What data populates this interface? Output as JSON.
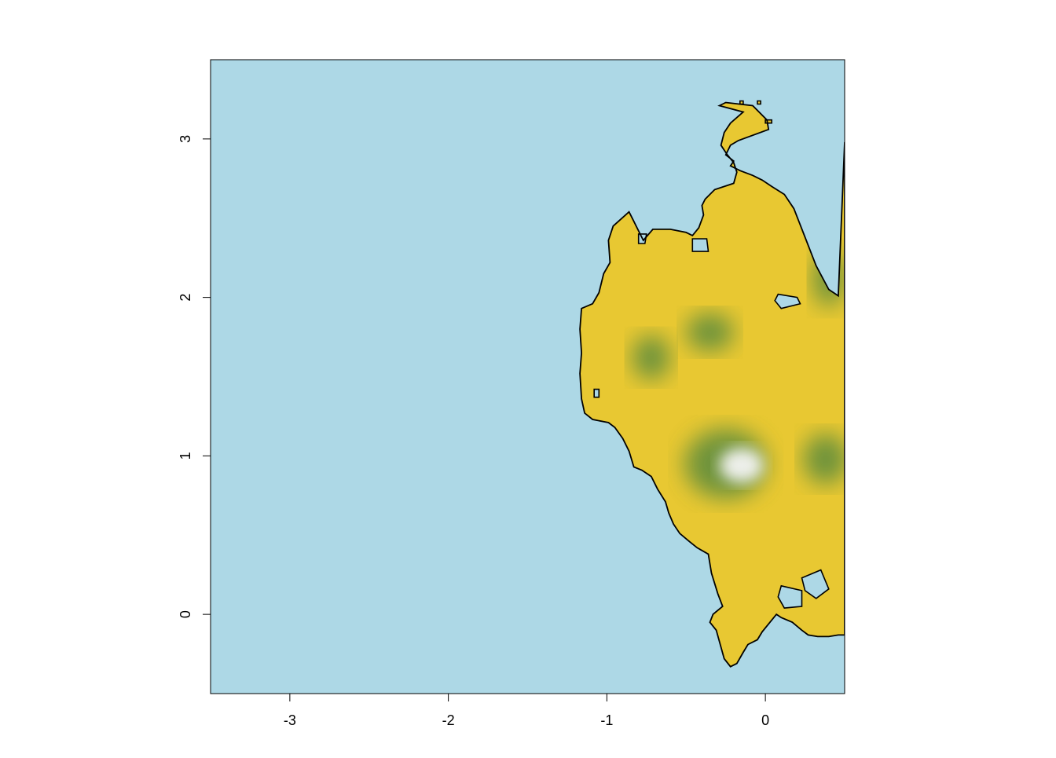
{
  "map": {
    "title": "",
    "xlabel": "",
    "ylabel": "",
    "xlim": [
      -3.5,
      0.5
    ],
    "ylim": [
      -0.5,
      3.5
    ],
    "x_ticks": [
      {
        "value": -3,
        "label": "-3"
      },
      {
        "value": -2,
        "label": "-2"
      },
      {
        "value": -1,
        "label": "-1"
      },
      {
        "value": 0,
        "label": "0"
      }
    ],
    "y_ticks": [
      {
        "value": 0,
        "label": "0"
      },
      {
        "value": 1,
        "label": "1"
      },
      {
        "value": 2,
        "label": "2"
      },
      {
        "value": 3,
        "label": "3"
      }
    ],
    "colors": {
      "water": "#add8e6",
      "land_low": "#e8c832",
      "land_mid": "#5a8a3c",
      "land_high": "#f4f4f4",
      "coastline": "#000000"
    },
    "coastline": [
      [
        -0.29,
        3.21
      ],
      [
        -0.25,
        3.23
      ],
      [
        -0.08,
        3.21
      ],
      [
        0.01,
        3.12
      ],
      [
        0.02,
        3.06
      ],
      [
        -0.17,
        2.99
      ],
      [
        -0.22,
        2.96
      ],
      [
        -0.25,
        2.9
      ],
      [
        -0.2,
        2.86
      ],
      [
        -0.22,
        2.83
      ],
      [
        -0.16,
        2.8
      ],
      [
        -0.08,
        2.77
      ],
      [
        -0.02,
        2.74
      ],
      [
        0.04,
        2.7
      ],
      [
        0.12,
        2.65
      ],
      [
        0.18,
        2.56
      ],
      [
        0.25,
        2.38
      ],
      [
        0.32,
        2.2
      ],
      [
        0.4,
        2.05
      ],
      [
        0.46,
        2.01
      ],
      [
        0.5,
        2.98
      ],
      [
        0.5,
        -0.13
      ],
      [
        0.46,
        -0.13
      ],
      [
        0.4,
        -0.14
      ],
      [
        0.33,
        -0.14
      ],
      [
        0.27,
        -0.13
      ],
      [
        0.23,
        -0.1
      ],
      [
        0.17,
        -0.05
      ],
      [
        0.1,
        -0.02
      ],
      [
        0.07,
        0.0
      ],
      [
        -0.02,
        -0.11
      ],
      [
        -0.05,
        -0.16
      ],
      [
        -0.11,
        -0.19
      ],
      [
        -0.14,
        -0.24
      ],
      [
        -0.18,
        -0.31
      ],
      [
        -0.22,
        -0.33
      ],
      [
        -0.26,
        -0.28
      ],
      [
        -0.31,
        -0.1
      ],
      [
        -0.35,
        -0.05
      ],
      [
        -0.33,
        0.0
      ],
      [
        -0.27,
        0.05
      ],
      [
        -0.3,
        0.13
      ],
      [
        -0.34,
        0.26
      ],
      [
        -0.36,
        0.38
      ],
      [
        -0.43,
        0.42
      ],
      [
        -0.48,
        0.46
      ],
      [
        -0.54,
        0.51
      ],
      [
        -0.58,
        0.57
      ],
      [
        -0.61,
        0.64
      ],
      [
        -0.63,
        0.71
      ],
      [
        -0.68,
        0.79
      ],
      [
        -0.72,
        0.87
      ],
      [
        -0.78,
        0.91
      ],
      [
        -0.83,
        0.93
      ],
      [
        -0.86,
        1.03
      ],
      [
        -0.9,
        1.11
      ],
      [
        -0.95,
        1.18
      ],
      [
        -0.99,
        1.21
      ],
      [
        -1.09,
        1.23
      ],
      [
        -1.14,
        1.27
      ],
      [
        -1.16,
        1.36
      ],
      [
        -1.17,
        1.52
      ],
      [
        -1.16,
        1.65
      ],
      [
        -1.17,
        1.8
      ],
      [
        -1.16,
        1.93
      ],
      [
        -1.09,
        1.96
      ],
      [
        -1.05,
        2.03
      ],
      [
        -1.02,
        2.15
      ],
      [
        -0.98,
        2.22
      ],
      [
        -0.99,
        2.36
      ],
      [
        -0.96,
        2.45
      ],
      [
        -0.86,
        2.54
      ],
      [
        -0.84,
        2.5
      ],
      [
        -0.8,
        2.42
      ],
      [
        -0.77,
        2.36
      ],
      [
        -0.71,
        2.43
      ],
      [
        -0.6,
        2.43
      ],
      [
        -0.5,
        2.41
      ],
      [
        -0.46,
        2.39
      ],
      [
        -0.42,
        2.44
      ],
      [
        -0.39,
        2.52
      ],
      [
        -0.4,
        2.58
      ],
      [
        -0.38,
        2.62
      ],
      [
        -0.32,
        2.68
      ],
      [
        -0.2,
        2.72
      ],
      [
        -0.18,
        2.79
      ],
      [
        -0.2,
        2.85
      ],
      [
        -0.24,
        2.9
      ],
      [
        -0.28,
        2.96
      ],
      [
        -0.26,
        3.04
      ],
      [
        -0.22,
        3.1
      ],
      [
        -0.14,
        3.17
      ],
      [
        -0.29,
        3.21
      ]
    ],
    "lakes": [
      [
        [
          0.08,
          2.02
        ],
        [
          0.2,
          2.0
        ],
        [
          0.22,
          1.96
        ],
        [
          0.1,
          1.93
        ],
        [
          0.06,
          1.98
        ]
      ],
      [
        [
          0.23,
          0.23
        ],
        [
          0.35,
          0.28
        ],
        [
          0.4,
          0.16
        ],
        [
          0.32,
          0.1
        ],
        [
          0.25,
          0.15
        ]
      ],
      [
        [
          0.1,
          0.18
        ],
        [
          0.23,
          0.15
        ],
        [
          0.23,
          0.05
        ],
        [
          0.12,
          0.04
        ],
        [
          0.08,
          0.11
        ]
      ],
      [
        [
          -0.46,
          2.37
        ],
        [
          -0.37,
          2.37
        ],
        [
          -0.36,
          2.29
        ],
        [
          -0.46,
          2.29
        ]
      ],
      [
        [
          -0.8,
          2.4
        ],
        [
          -0.75,
          2.4
        ],
        [
          -0.76,
          2.34
        ],
        [
          -0.8,
          2.34
        ]
      ],
      [
        [
          -1.08,
          1.42
        ],
        [
          -1.05,
          1.42
        ],
        [
          -1.05,
          1.37
        ],
        [
          -1.08,
          1.37
        ]
      ]
    ],
    "islets": [
      [
        [
          -0.16,
          3.24
        ],
        [
          -0.14,
          3.24
        ],
        [
          -0.14,
          3.22
        ],
        [
          -0.16,
          3.22
        ]
      ],
      [
        [
          -0.05,
          3.24
        ],
        [
          -0.03,
          3.24
        ],
        [
          -0.03,
          3.22
        ],
        [
          -0.05,
          3.22
        ]
      ],
      [
        [
          0.0,
          3.12
        ],
        [
          0.04,
          3.12
        ],
        [
          0.04,
          3.1
        ],
        [
          0.0,
          3.1
        ]
      ]
    ],
    "highlands": [
      {
        "x": -0.72,
        "y": 1.62,
        "rx": 0.12,
        "ry": 0.14,
        "level": "mid"
      },
      {
        "x": -0.35,
        "y": 1.78,
        "rx": 0.15,
        "ry": 0.12,
        "level": "mid"
      },
      {
        "x": -0.25,
        "y": 0.95,
        "rx": 0.26,
        "ry": 0.22,
        "level": "mid"
      },
      {
        "x": 0.38,
        "y": 0.98,
        "rx": 0.14,
        "ry": 0.16,
        "level": "mid"
      },
      {
        "x": 0.4,
        "y": 2.12,
        "rx": 0.1,
        "ry": 0.18,
        "level": "mid"
      },
      {
        "x": -0.15,
        "y": 0.94,
        "rx": 0.14,
        "ry": 0.11,
        "level": "high"
      }
    ]
  }
}
